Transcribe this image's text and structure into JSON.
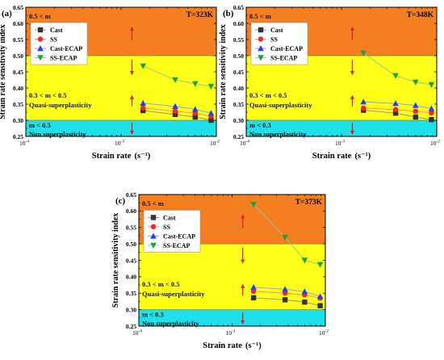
{
  "chart_data": [
    {
      "panel_label": "(a)",
      "type": "line",
      "temperature_label": "T=323K",
      "xlabel_main": "Strain rate",
      "xlabel_unit": "(s⁻¹)",
      "ylabel": "Strain rate sensitivity index",
      "x_scale": "log",
      "xlim": [
        0.0001,
        0.01
      ],
      "ylim": [
        0.25,
        0.65
      ],
      "x_ticks": [
        {
          "value": 0.0001,
          "base": "10",
          "exp": "-4"
        },
        {
          "value": 0.001,
          "base": "10",
          "exp": "-3"
        },
        {
          "value": 0.01,
          "base": "10",
          "exp": "-2"
        }
      ],
      "y_ticks": [
        "0.25",
        "0.30",
        "0.35",
        "0.40",
        "0.45",
        "0.50",
        "0.55",
        "0.60",
        "0.65"
      ],
      "regions": [
        {
          "ymin": 0.5,
          "ymax": 0.65,
          "color": "#F47F20",
          "line1": "0.5 < m",
          "line2": "True superplasticity"
        },
        {
          "ymin": 0.3,
          "ymax": 0.5,
          "color": "#FFFF17",
          "line1": "0.3 < m < 0.5",
          "line2": "Quasi-superplasticity"
        },
        {
          "ymin": 0.25,
          "ymax": 0.3,
          "color": "#1FE0E8",
          "line1": "m < 0.3",
          "line2": "Non superplasticity"
        }
      ],
      "x": [
        0.0017,
        0.0037,
        0.006,
        0.0088
      ],
      "series": [
        {
          "name": "Cast",
          "marker": "square",
          "color": "#333333",
          "values": [
            0.33,
            0.318,
            0.31,
            0.3
          ]
        },
        {
          "name": "SS",
          "marker": "circle",
          "color": "#FF2020",
          "values": [
            0.338,
            0.328,
            0.322,
            0.312
          ]
        },
        {
          "name": "Cast-ECAP",
          "marker": "triangle-up",
          "color": "#1F40FF",
          "values": [
            0.353,
            0.343,
            0.334,
            0.322
          ]
        },
        {
          "name": "SS-ECAP",
          "marker": "triangle-down",
          "color": "#20A040",
          "values": [
            0.468,
            0.425,
            0.413,
            0.405
          ]
        }
      ],
      "arrows": [
        {
          "x": 0.0013,
          "y_from": 0.548,
          "y_to": 0.59
        },
        {
          "x": 0.0013,
          "y_from": 0.488,
          "y_to": 0.44
        },
        {
          "x": 0.0013,
          "y_from": 0.343,
          "y_to": 0.378
        },
        {
          "x": 0.0013,
          "y_from": 0.292,
          "y_to": 0.255
        }
      ],
      "legend_position": "top-left"
    },
    {
      "panel_label": "(b)",
      "type": "line",
      "temperature_label": "T=348K",
      "xlabel_main": "Strain rate",
      "xlabel_unit": "(s⁻¹)",
      "ylabel": "Strain rate sensitivity index",
      "x_scale": "log",
      "xlim": [
        0.0001,
        0.01
      ],
      "ylim": [
        0.25,
        0.65
      ],
      "x_ticks": [
        {
          "value": 0.0001,
          "base": "10",
          "exp": "-4"
        },
        {
          "value": 0.001,
          "base": "10",
          "exp": "-3"
        },
        {
          "value": 0.01,
          "base": "10",
          "exp": "-2"
        }
      ],
      "y_ticks": [
        "0.25",
        "0.30",
        "0.35",
        "0.40",
        "0.45",
        "0.50",
        "0.55",
        "0.60",
        "0.65"
      ],
      "regions": [
        {
          "ymin": 0.5,
          "ymax": 0.65,
          "color": "#F47F20",
          "line1": "0.5 < m",
          "line2": "True superplasticity"
        },
        {
          "ymin": 0.3,
          "ymax": 0.5,
          "color": "#FFFF17",
          "line1": "0.3 < m < 0.5",
          "line2": "Quasi-superplasticity"
        },
        {
          "ymin": 0.25,
          "ymax": 0.3,
          "color": "#1FE0E8",
          "line1": "m < 0.3",
          "line2": "Non superplasticity"
        }
      ],
      "x": [
        0.0017,
        0.0037,
        0.006,
        0.0088
      ],
      "series": [
        {
          "name": "Cast",
          "marker": "square",
          "color": "#333333",
          "values": [
            0.331,
            0.322,
            0.31,
            0.302
          ]
        },
        {
          "name": "SS",
          "marker": "circle",
          "color": "#FF2020",
          "values": [
            0.338,
            0.333,
            0.328,
            0.323
          ]
        },
        {
          "name": "Cast-ECAP",
          "marker": "triangle-up",
          "color": "#1F40FF",
          "values": [
            0.357,
            0.352,
            0.346,
            0.336
          ]
        },
        {
          "name": "SS-ECAP",
          "marker": "triangle-down",
          "color": "#20A040",
          "values": [
            0.508,
            0.438,
            0.418,
            0.41
          ]
        }
      ],
      "arrows": [
        {
          "x": 0.0013,
          "y_from": 0.548,
          "y_to": 0.59
        },
        {
          "x": 0.0013,
          "y_from": 0.488,
          "y_to": 0.44
        },
        {
          "x": 0.0013,
          "y_from": 0.343,
          "y_to": 0.378
        },
        {
          "x": 0.0013,
          "y_from": 0.292,
          "y_to": 0.255
        }
      ],
      "legend_position": "top-left"
    },
    {
      "panel_label": "(c)",
      "type": "line",
      "temperature_label": "T=373K",
      "xlabel_main": "Strain rate",
      "xlabel_unit": "(s⁻¹)",
      "ylabel": "Strain rate sensitivity index",
      "x_scale": "log",
      "xlim": [
        0.0001,
        0.01
      ],
      "ylim": [
        0.25,
        0.65
      ],
      "x_ticks": [
        {
          "value": 0.0001,
          "base": "10",
          "exp": "-4"
        },
        {
          "value": 0.001,
          "base": "10",
          "exp": "-3"
        },
        {
          "value": 0.01,
          "base": "10",
          "exp": "-2"
        }
      ],
      "y_ticks": [
        "0.25",
        "0.30",
        "0.35",
        "0.40",
        "0.45",
        "0.50",
        "0.55",
        "0.60",
        "0.65"
      ],
      "regions": [
        {
          "ymin": 0.5,
          "ymax": 0.65,
          "color": "#F47F20",
          "line1": "0.5 < m",
          "line2": "True superplasticity"
        },
        {
          "ymin": 0.3,
          "ymax": 0.5,
          "color": "#FFFF17",
          "line1": "0.3 < m < 0.5",
          "line2": "Quasi-superplasticity"
        },
        {
          "ymin": 0.25,
          "ymax": 0.3,
          "color": "#1FE0E8",
          "line1": "m < 0.3",
          "line2": "Non superplasticity"
        }
      ],
      "x": [
        0.0017,
        0.0037,
        0.006,
        0.0088
      ],
      "series": [
        {
          "name": "Cast",
          "marker": "square",
          "color": "#333333",
          "values": [
            0.336,
            0.33,
            0.323,
            0.312
          ]
        },
        {
          "name": "SS",
          "marker": "circle",
          "color": "#FF2020",
          "values": [
            0.356,
            0.35,
            0.345,
            0.335
          ]
        },
        {
          "name": "Cast-ECAP",
          "marker": "triangle-up",
          "color": "#1F40FF",
          "values": [
            0.368,
            0.362,
            0.355,
            0.34
          ]
        },
        {
          "name": "SS-ECAP",
          "marker": "triangle-down",
          "color": "#20A040",
          "values": [
            0.62,
            0.52,
            0.45,
            0.437
          ]
        }
      ],
      "arrows": [
        {
          "x": 0.0013,
          "y_from": 0.548,
          "y_to": 0.59
        },
        {
          "x": 0.0013,
          "y_from": 0.488,
          "y_to": 0.44
        },
        {
          "x": 0.0013,
          "y_from": 0.343,
          "y_to": 0.378
        },
        {
          "x": 0.0013,
          "y_from": 0.292,
          "y_to": 0.255
        }
      ],
      "legend_position": "top-left"
    }
  ]
}
